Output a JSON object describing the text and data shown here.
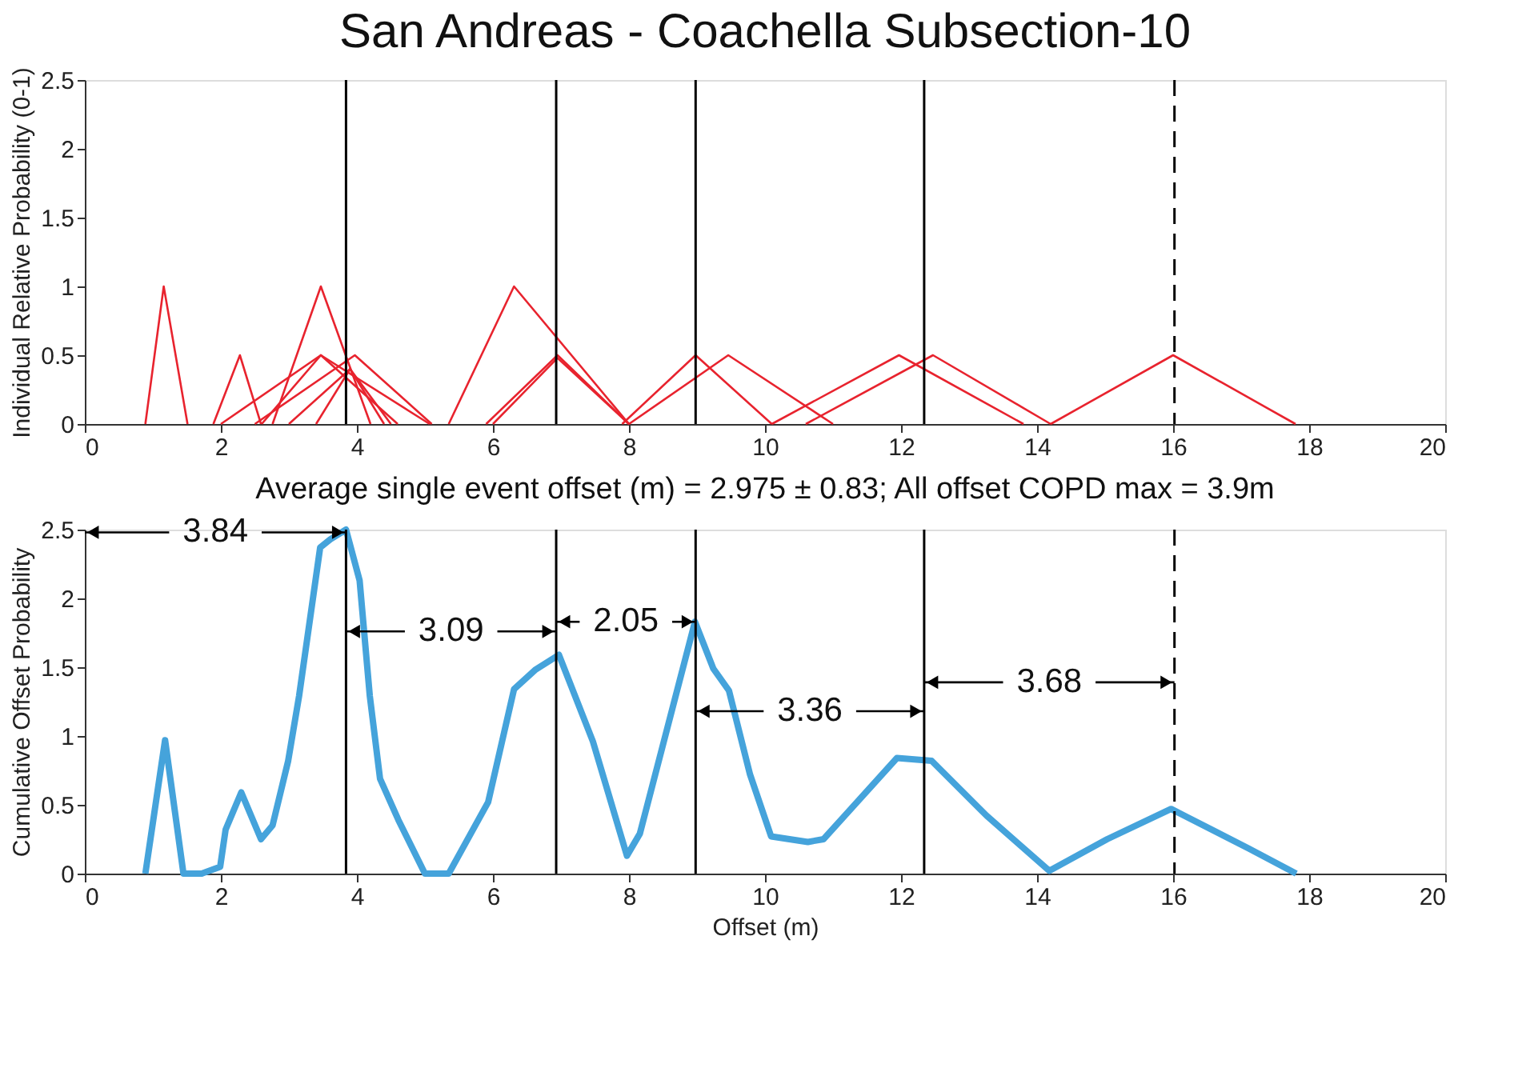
{
  "chart_data": [
    {
      "type": "line",
      "title": "San Andreas - Coachella Subsection-10",
      "ylabel": "Individual Relative Probability (0-1)",
      "xlim": [
        0,
        20
      ],
      "xticks": [
        0,
        2,
        4,
        6,
        8,
        10,
        12,
        14,
        16,
        18,
        20
      ],
      "ylim": [
        0,
        2.5
      ],
      "yticks": [
        0,
        0.5,
        1,
        1.5,
        2,
        2.5
      ],
      "grid": false,
      "line_style": "solid",
      "marker": "none",
      "series": [
        {
          "color": "#e8232e",
          "x": [
            0.89,
            1.16,
            1.51
          ],
          "values": [
            0,
            1.0,
            0
          ]
        },
        {
          "color": "#e8232e",
          "x": [
            1.89,
            2.28,
            2.59
          ],
          "values": [
            0,
            0.5,
            0
          ]
        },
        {
          "color": "#e8232e",
          "x": [
            2.76,
            3.47,
            4.2
          ],
          "values": [
            0,
            1.0,
            0
          ]
        },
        {
          "color": "#e8232e",
          "x": [
            2.0,
            3.47,
            5.07
          ],
          "values": [
            0,
            0.5,
            0
          ]
        },
        {
          "color": "#e8232e",
          "x": [
            2.6,
            3.47,
            4.6
          ],
          "values": [
            0,
            0.5,
            0
          ]
        },
        {
          "color": "#e8232e",
          "x": [
            2.5,
            3.97,
            5.1
          ],
          "values": [
            0,
            0.5,
            0
          ]
        },
        {
          "color": "#e8232e",
          "x": [
            3.0,
            3.9,
            4.4
          ],
          "values": [
            0,
            0.4,
            0
          ]
        },
        {
          "color": "#e8232e",
          "x": [
            3.4,
            3.9,
            4.5
          ],
          "values": [
            0,
            0.4,
            0
          ]
        },
        {
          "color": "#e8232e",
          "x": [
            5.35,
            6.31,
            8.0
          ],
          "values": [
            0,
            1.0,
            0
          ]
        },
        {
          "color": "#e8232e",
          "x": [
            5.9,
            6.95,
            8.0
          ],
          "values": [
            0,
            0.5,
            0
          ]
        },
        {
          "color": "#e8232e",
          "x": [
            6.0,
            6.95,
            8.0
          ],
          "values": [
            0,
            0.48,
            0
          ]
        },
        {
          "color": "#e8232e",
          "x": [
            7.9,
            8.98,
            10.1
          ],
          "values": [
            0,
            0.5,
            0
          ]
        },
        {
          "color": "#e8232e",
          "x": [
            8.0,
            9.46,
            11.0
          ],
          "values": [
            0,
            0.5,
            0
          ]
        },
        {
          "color": "#e8232e",
          "x": [
            10.1,
            11.97,
            13.8
          ],
          "values": [
            0,
            0.5,
            0
          ]
        },
        {
          "color": "#e8232e",
          "x": [
            10.6,
            12.47,
            14.2
          ],
          "values": [
            0,
            0.5,
            0
          ]
        },
        {
          "color": "#e8232e",
          "x": [
            14.2,
            16.0,
            17.8
          ],
          "values": [
            0,
            0.5,
            0
          ]
        }
      ],
      "ref_lines": [
        {
          "axis": "x",
          "value": 3.84,
          "color": "#000000",
          "line_style": "solid"
        },
        {
          "axis": "x",
          "value": 6.93,
          "color": "#000000",
          "line_style": "solid"
        },
        {
          "axis": "x",
          "value": 8.98,
          "color": "#000000",
          "line_style": "solid"
        },
        {
          "axis": "x",
          "value": 12.34,
          "color": "#000000",
          "line_style": "solid"
        },
        {
          "axis": "x",
          "value": 16.02,
          "color": "#000000",
          "line_style": "dashed"
        }
      ]
    },
    {
      "type": "line",
      "title": "Average single event offset (m) = 2.975 ± 0.83; All offset COPD max = 3.9m",
      "xlabel": "Offset (m)",
      "ylabel": "Cumulative Offset Probability",
      "xlim": [
        0,
        20
      ],
      "xticks": [
        0,
        2,
        4,
        6,
        8,
        10,
        12,
        14,
        16,
        18,
        20
      ],
      "ylim": [
        0,
        2.5
      ],
      "yticks": [
        0,
        0.5,
        1,
        1.5,
        2,
        2.5
      ],
      "grid": false,
      "line_style": "solid",
      "marker": "none",
      "series": [
        {
          "color": "#45a3db",
          "x": [
            0.89,
            1.18,
            1.45,
            1.72,
            1.99,
            2.07,
            2.3,
            2.59,
            2.76,
            2.99,
            3.15,
            3.46,
            3.61,
            3.84,
            4.04,
            4.19,
            4.34,
            4.61,
            5.0,
            5.35,
            5.93,
            6.31,
            6.62,
            6.97,
            7.47,
            7.97,
            8.16,
            8.97,
            9.24,
            9.47,
            9.78,
            10.09,
            10.63,
            10.86,
            11.94,
            12.45,
            13.26,
            14.18,
            15.03,
            15.97,
            17.12,
            17.81
          ],
          "values": [
            0,
            0.97,
            0,
            0,
            0.05,
            0.32,
            0.59,
            0.25,
            0.35,
            0.82,
            1.29,
            2.37,
            2.43,
            2.5,
            2.13,
            1.29,
            0.69,
            0.39,
            0,
            0,
            0.52,
            1.34,
            1.48,
            1.59,
            0.96,
            0.13,
            0.29,
            1.83,
            1.49,
            1.33,
            0.72,
            0.27,
            0.23,
            0.25,
            0.84,
            0.82,
            0.42,
            0.02,
            0.25,
            0.47,
            0.18,
            0
          ]
        }
      ],
      "ref_lines": [
        {
          "axis": "x",
          "value": 3.84,
          "color": "#000000",
          "line_style": "solid"
        },
        {
          "axis": "x",
          "value": 6.93,
          "color": "#000000",
          "line_style": "solid"
        },
        {
          "axis": "x",
          "value": 8.98,
          "color": "#000000",
          "line_style": "solid"
        },
        {
          "axis": "x",
          "value": 12.34,
          "color": "#000000",
          "line_style": "solid"
        },
        {
          "axis": "x",
          "value": 16.02,
          "color": "#000000",
          "line_style": "dashed"
        }
      ],
      "annotations": [
        {
          "text": "3.84",
          "x": 3.84,
          "y": 2.48
        },
        {
          "text": "3.09",
          "x": 6.93,
          "y": 1.76
        },
        {
          "text": "2.05",
          "x": 8.98,
          "y": 1.83
        },
        {
          "text": "3.36",
          "x": 12.34,
          "y": 1.18
        },
        {
          "text": "3.68",
          "x": 16.02,
          "y": 1.39
        }
      ]
    }
  ]
}
